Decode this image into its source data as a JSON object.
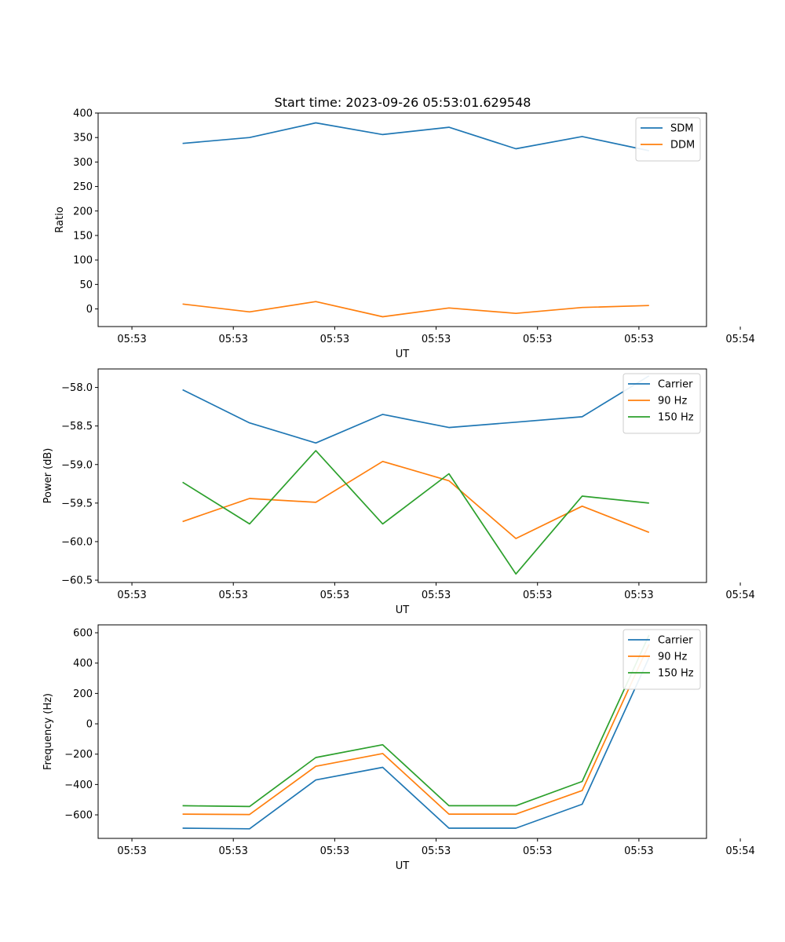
{
  "title": "Start time: 2023-09-26 05:53:01.629548",
  "chart_data": [
    {
      "type": "line",
      "xlabel": "UT",
      "ylabel": "Ratio",
      "x_ticks": [
        "05:53",
        "05:53",
        "05:53",
        "05:53",
        "05:53",
        "05:53",
        "05:54"
      ],
      "xlim": [
        -0.5,
        8.5
      ],
      "x_tick_positions": [
        0,
        1.5,
        3,
        4.5,
        6,
        7.5,
        9
      ],
      "x": [
        0.75,
        1.74,
        2.72,
        3.71,
        4.69,
        5.68,
        6.66,
        7.65
      ],
      "ylim": [
        -36,
        400
      ],
      "y_ticks": [
        0,
        50,
        100,
        150,
        200,
        250,
        300,
        350,
        400
      ],
      "y_tick_labels": [
        "0",
        "50",
        "100",
        "150",
        "200",
        "250",
        "300",
        "350",
        "400"
      ],
      "legend": "top-right",
      "series": [
        {
          "name": "SDM",
          "color": "#1f77b4",
          "values": [
            338,
            350,
            380,
            356,
            371,
            327,
            352,
            323
          ]
        },
        {
          "name": "DDM",
          "color": "#ff7f0e",
          "values": [
            10,
            -6,
            15,
            -16,
            2,
            -9,
            3,
            7
          ]
        }
      ]
    },
    {
      "type": "line",
      "xlabel": "UT",
      "ylabel": "Power (dB)",
      "x_ticks": [
        "05:53",
        "05:53",
        "05:53",
        "05:53",
        "05:53",
        "05:53",
        "05:54"
      ],
      "xlim": [
        -0.5,
        8.5
      ],
      "x_tick_positions": [
        0,
        1.5,
        3,
        4.5,
        6,
        7.5,
        9
      ],
      "x": [
        0.75,
        1.74,
        2.72,
        3.71,
        4.69,
        5.68,
        6.66,
        7.65
      ],
      "ylim": [
        -60.53,
        -57.76
      ],
      "y_ticks": [
        -60.5,
        -60.0,
        -59.5,
        -59.0,
        -58.5,
        -58.0
      ],
      "y_tick_labels": [
        "−60.5",
        "−60.0",
        "−59.5",
        "−59.0",
        "−58.5",
        "−58.0"
      ],
      "legend": "top-right",
      "series": [
        {
          "name": "Carrier",
          "color": "#1f77b4",
          "values": [
            -58.03,
            -58.46,
            -58.72,
            -58.35,
            -58.52,
            -58.45,
            -58.38,
            -57.85
          ]
        },
        {
          "name": "90 Hz",
          "color": "#ff7f0e",
          "values": [
            -59.74,
            -59.44,
            -59.49,
            -58.96,
            -59.21,
            -59.96,
            -59.54,
            -59.88
          ]
        },
        {
          "name": "150 Hz",
          "color": "#2ca02c",
          "values": [
            -59.23,
            -59.77,
            -58.82,
            -59.77,
            -59.12,
            -60.42,
            -59.41,
            -59.5
          ]
        }
      ]
    },
    {
      "type": "line",
      "xlabel": "UT",
      "ylabel": "Frequency (Hz)",
      "x_ticks": [
        "05:53",
        "05:53",
        "05:53",
        "05:53",
        "05:53",
        "05:53",
        "05:54"
      ],
      "xlim": [
        -0.5,
        8.5
      ],
      "x_tick_positions": [
        0,
        1.5,
        3,
        4.5,
        6,
        7.5,
        9
      ],
      "x": [
        0.75,
        1.74,
        2.72,
        3.71,
        4.69,
        5.68,
        6.66,
        7.65
      ],
      "ylim": [
        -755,
        652
      ],
      "y_ticks": [
        -600,
        -400,
        -200,
        0,
        200,
        400,
        600
      ],
      "y_tick_labels": [
        "−600",
        "−400",
        "−200",
        "0",
        "200",
        "400",
        "600"
      ],
      "legend": "top-right",
      "series": [
        {
          "name": "Carrier",
          "color": "#1f77b4",
          "values": [
            -688,
            -692,
            -370,
            -287,
            -688,
            -688,
            -530,
            436
          ]
        },
        {
          "name": "90 Hz",
          "color": "#ff7f0e",
          "values": [
            -595,
            -598,
            -280,
            -196,
            -595,
            -595,
            -440,
            523
          ]
        },
        {
          "name": "150 Hz",
          "color": "#2ca02c",
          "values": [
            -540,
            -545,
            -222,
            -138,
            -540,
            -540,
            -380,
            585
          ]
        }
      ]
    }
  ]
}
